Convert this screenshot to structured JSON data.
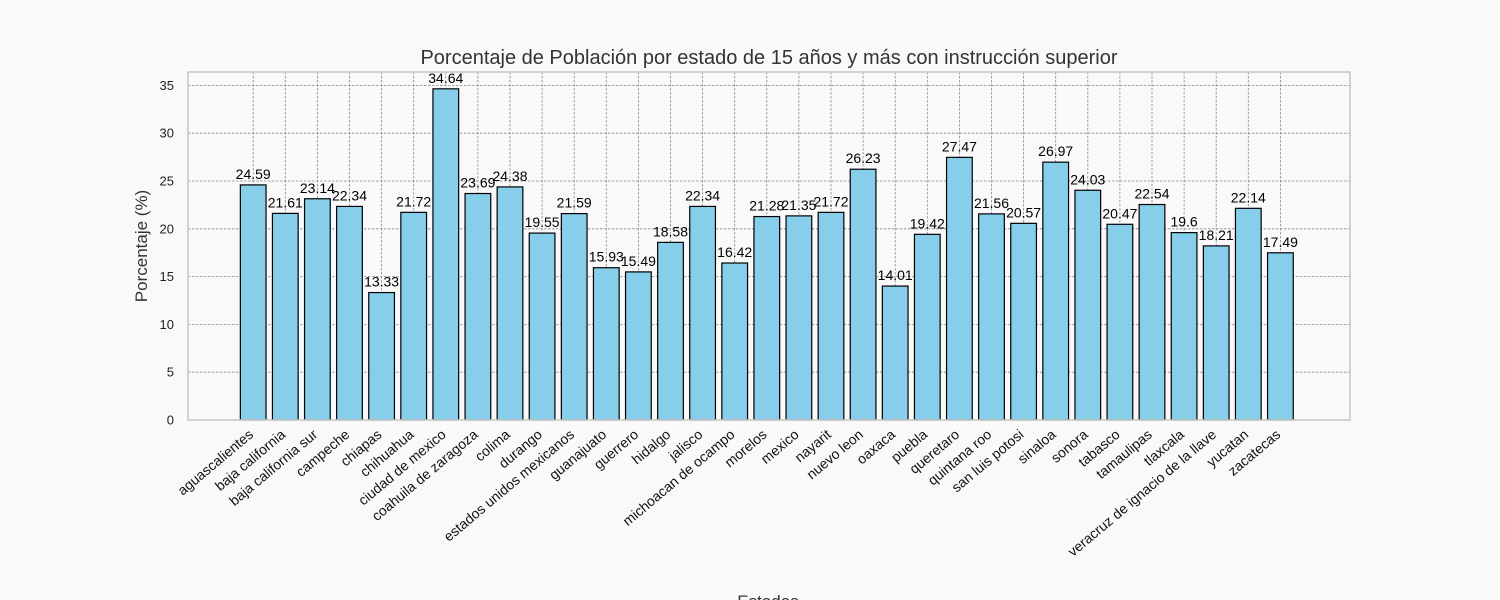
{
  "chart_data": {
    "type": "bar",
    "title": "Porcentaje de Población por estado de 15 años y más con instrucción superior",
    "xlabel": "Estados",
    "ylabel": "Porcentaje (%)",
    "ylim": [
      0,
      36.4
    ],
    "yticks": [
      0,
      5,
      10,
      15,
      20,
      25,
      30,
      35
    ],
    "grid": true,
    "bar_color": "#87ceeb",
    "bar_edge_color": "#000000",
    "categories": [
      "aguascalientes",
      "baja california",
      "baja california sur",
      "campeche",
      "chiapas",
      "chihuahua",
      "ciudad de mexico",
      "coahuila de zaragoza",
      "colima",
      "durango",
      "estados unidos mexicanos",
      "guanajuato",
      "guerrero",
      "hidalgo",
      "jalisco",
      "michoacan de ocampo",
      "morelos",
      "mexico",
      "nayarit",
      "nuevo leon",
      "oaxaca",
      "puebla",
      "queretaro",
      "quintana roo",
      "san luis potosi",
      "sinaloa",
      "sonora",
      "tabasco",
      "tamaulipas",
      "tlaxcala",
      "veracruz de ignacio de la llave",
      "yucatan",
      "zacatecas"
    ],
    "values": [
      24.59,
      21.61,
      23.14,
      22.34,
      13.33,
      21.72,
      34.64,
      23.69,
      24.38,
      19.55,
      21.59,
      15.93,
      15.49,
      18.58,
      22.34,
      16.42,
      21.28,
      21.35,
      21.72,
      26.23,
      14.01,
      19.42,
      27.47,
      21.56,
      20.57,
      26.97,
      24.03,
      20.47,
      22.54,
      19.6,
      18.21,
      22.14,
      17.49
    ]
  }
}
